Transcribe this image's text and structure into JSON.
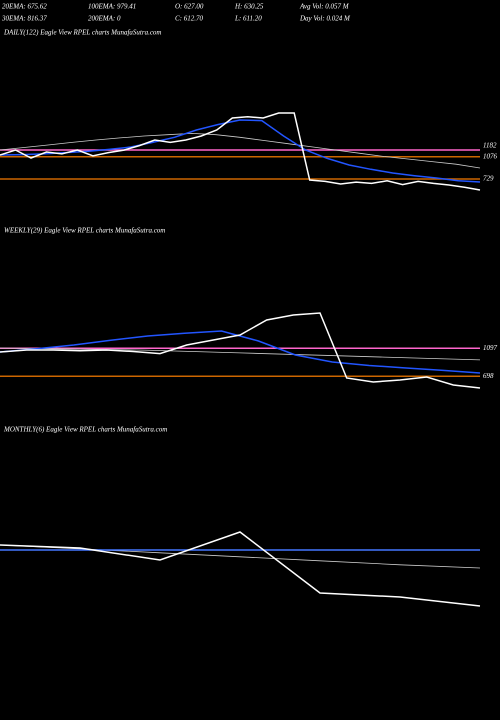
{
  "header": {
    "row1": [
      "20EMA: 675.62",
      "100EMA: 979.41",
      "O: 627.00",
      "H: 630.25",
      "Avg Vol: 0.057 M"
    ],
    "row2": [
      "30EMA: 816.37",
      "200EMA: 0",
      "C: 612.70",
      "L: 611.20",
      "Day Vol: 0.024 M"
    ]
  },
  "chart_data": [
    {
      "type": "line",
      "title": "DAILY(122) Eagle  View  RPEL  charts MunafaSutra.com",
      "ylim": [
        400,
        2900
      ],
      "series": [
        {
          "color": "#cccccc",
          "values": [
            1181,
            1220,
            1260,
            1300,
            1338,
            1370,
            1400,
            1420,
            1440,
            1420,
            1380,
            1330,
            1280,
            1230,
            1180,
            1130,
            1080,
            1040,
            1000,
            960,
            900
          ]
        },
        {
          "color": "#2255ff",
          "values": [
            1103,
            1110,
            1120,
            1140,
            1160,
            1190,
            1228,
            1300,
            1380,
            1494,
            1580,
            1650,
            1640,
            1400,
            1181,
            1050,
            947,
            880,
            822,
            780,
            744,
            700,
            681
          ]
        },
        {
          "color": "#ffffff",
          "values": [
            1103,
            1181,
            1056,
            1150,
            1120,
            1181,
            1090,
            1140,
            1180,
            1250,
            1338,
            1300,
            1338,
            1400,
            1494,
            1681,
            1700,
            1681,
            1759,
            1759,
            713,
            690,
            650,
            680,
            660,
            700,
            640,
            690,
            660,
            634,
            600,
            556
          ]
        }
      ],
      "hlines": [
        {
          "value": 1182,
          "color": "#ff66cc",
          "label": "1182"
        },
        {
          "value": 1076,
          "color": "#cc6600",
          "label": "1076"
        },
        {
          "value": 729,
          "color": "#cc6600",
          "label": "729"
        }
      ]
    },
    {
      "type": "line",
      "title": "WEEKLY(29) Eagle  View  RPEL  charts MunafaSutra.com",
      "ylim": [
        430,
        2140
      ],
      "series": [
        {
          "color": "#cccccc",
          "values": [
            1100,
            1090,
            1080,
            1070,
            1050,
            1030,
            1010,
            990,
            970,
            950,
            930
          ]
        },
        {
          "color": "#2255ff",
          "values": [
            1043,
            1090,
            1142,
            1210,
            1271,
            1310,
            1342,
            1200,
            1000,
            900,
            850,
            815,
            780,
            744
          ]
        },
        {
          "color": "#ffffff",
          "values": [
            1043,
            1071,
            1071,
            1060,
            1071,
            1050,
            1020,
            1142,
            1214,
            1285,
            1499,
            1570,
            1599,
            672,
            615,
            644,
            687,
            573,
            530
          ]
        }
      ],
      "hlines": [
        {
          "value": 1097,
          "color": "#ff66cc",
          "label": "1097"
        },
        {
          "value": 698,
          "color": "#cc6600",
          "label": "698"
        }
      ]
    },
    {
      "type": "line",
      "title": "MONTHLY(6) Eagle  View  RPEL  charts MunafaSutra.com",
      "ylim": [
        400,
        1900
      ],
      "series": [
        {
          "color": "#cccccc",
          "values": [
            1338,
            1290,
            1240,
            1190,
            1140,
            1090,
            1050
          ]
        },
        {
          "color": "#4477ff",
          "values": [
            1275,
            1275
          ]
        },
        {
          "color": "#ffffff",
          "values": [
            1338,
            1300,
            1150,
            1500,
            738,
            688,
            575
          ]
        }
      ],
      "hlines": []
    }
  ]
}
